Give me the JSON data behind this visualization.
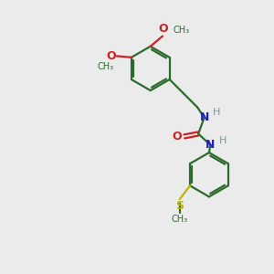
{
  "bg_color": "#ebebeb",
  "bond_color": "#2d6b2d",
  "n_color": "#2222bb",
  "o_color": "#cc2222",
  "s_color": "#b8b800",
  "h_color": "#7a9a9a",
  "line_width": 1.6,
  "fig_size": [
    3.0,
    3.0
  ],
  "dpi": 100,
  "xlim": [
    0,
    10
  ],
  "ylim": [
    0,
    10
  ]
}
